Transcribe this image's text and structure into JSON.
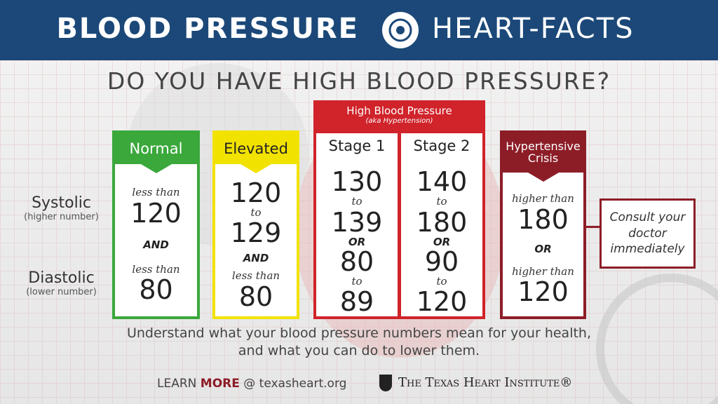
{
  "header": {
    "title_left": "BLOOD PRESSURE",
    "title_right": "HEART-FACTS"
  },
  "question": "DO YOU HAVE HIGH BLOOD PRESSURE?",
  "row_labels": [
    {
      "label": "Systolic",
      "note": "(higher number)"
    },
    {
      "label": "Diastolic",
      "note": "(lower number)"
    }
  ],
  "high_bp_group": {
    "title": "High Blood Pressure",
    "subtitle": "(aka Hypertension)"
  },
  "columns": [
    {
      "name": "Normal",
      "systolic": [
        "less than",
        "120"
      ],
      "joiner": "AND",
      "diastolic": [
        "less than",
        "80"
      ]
    },
    {
      "name": "Elevated",
      "systolic": [
        "120",
        "to",
        "129"
      ],
      "joiner": "AND",
      "diastolic": [
        "less than",
        "80"
      ]
    },
    {
      "name": "Stage 1",
      "systolic": [
        "130",
        "to",
        "139"
      ],
      "joiner": "OR",
      "diastolic": [
        "80",
        "to",
        "89"
      ]
    },
    {
      "name": "Stage 2",
      "systolic": [
        "140",
        "to",
        "180"
      ],
      "joiner": "OR",
      "diastolic": [
        "90",
        "to",
        "120"
      ]
    },
    {
      "name": "Hypertensive Crisis",
      "systolic": [
        "higher than",
        "180"
      ],
      "joiner": "OR",
      "diastolic": [
        "higher than",
        "120"
      ]
    }
  ],
  "note": [
    "Consult your",
    "doctor",
    "immediately"
  ],
  "footer": {
    "message": [
      "Understand what your blood pressure numbers mean for your health,",
      "and what you can do to lower them."
    ],
    "learn": "LEARN",
    "more": "MORE",
    "site": "@ texasheart.org",
    "institute": "The Texas Heart Institute®"
  }
}
